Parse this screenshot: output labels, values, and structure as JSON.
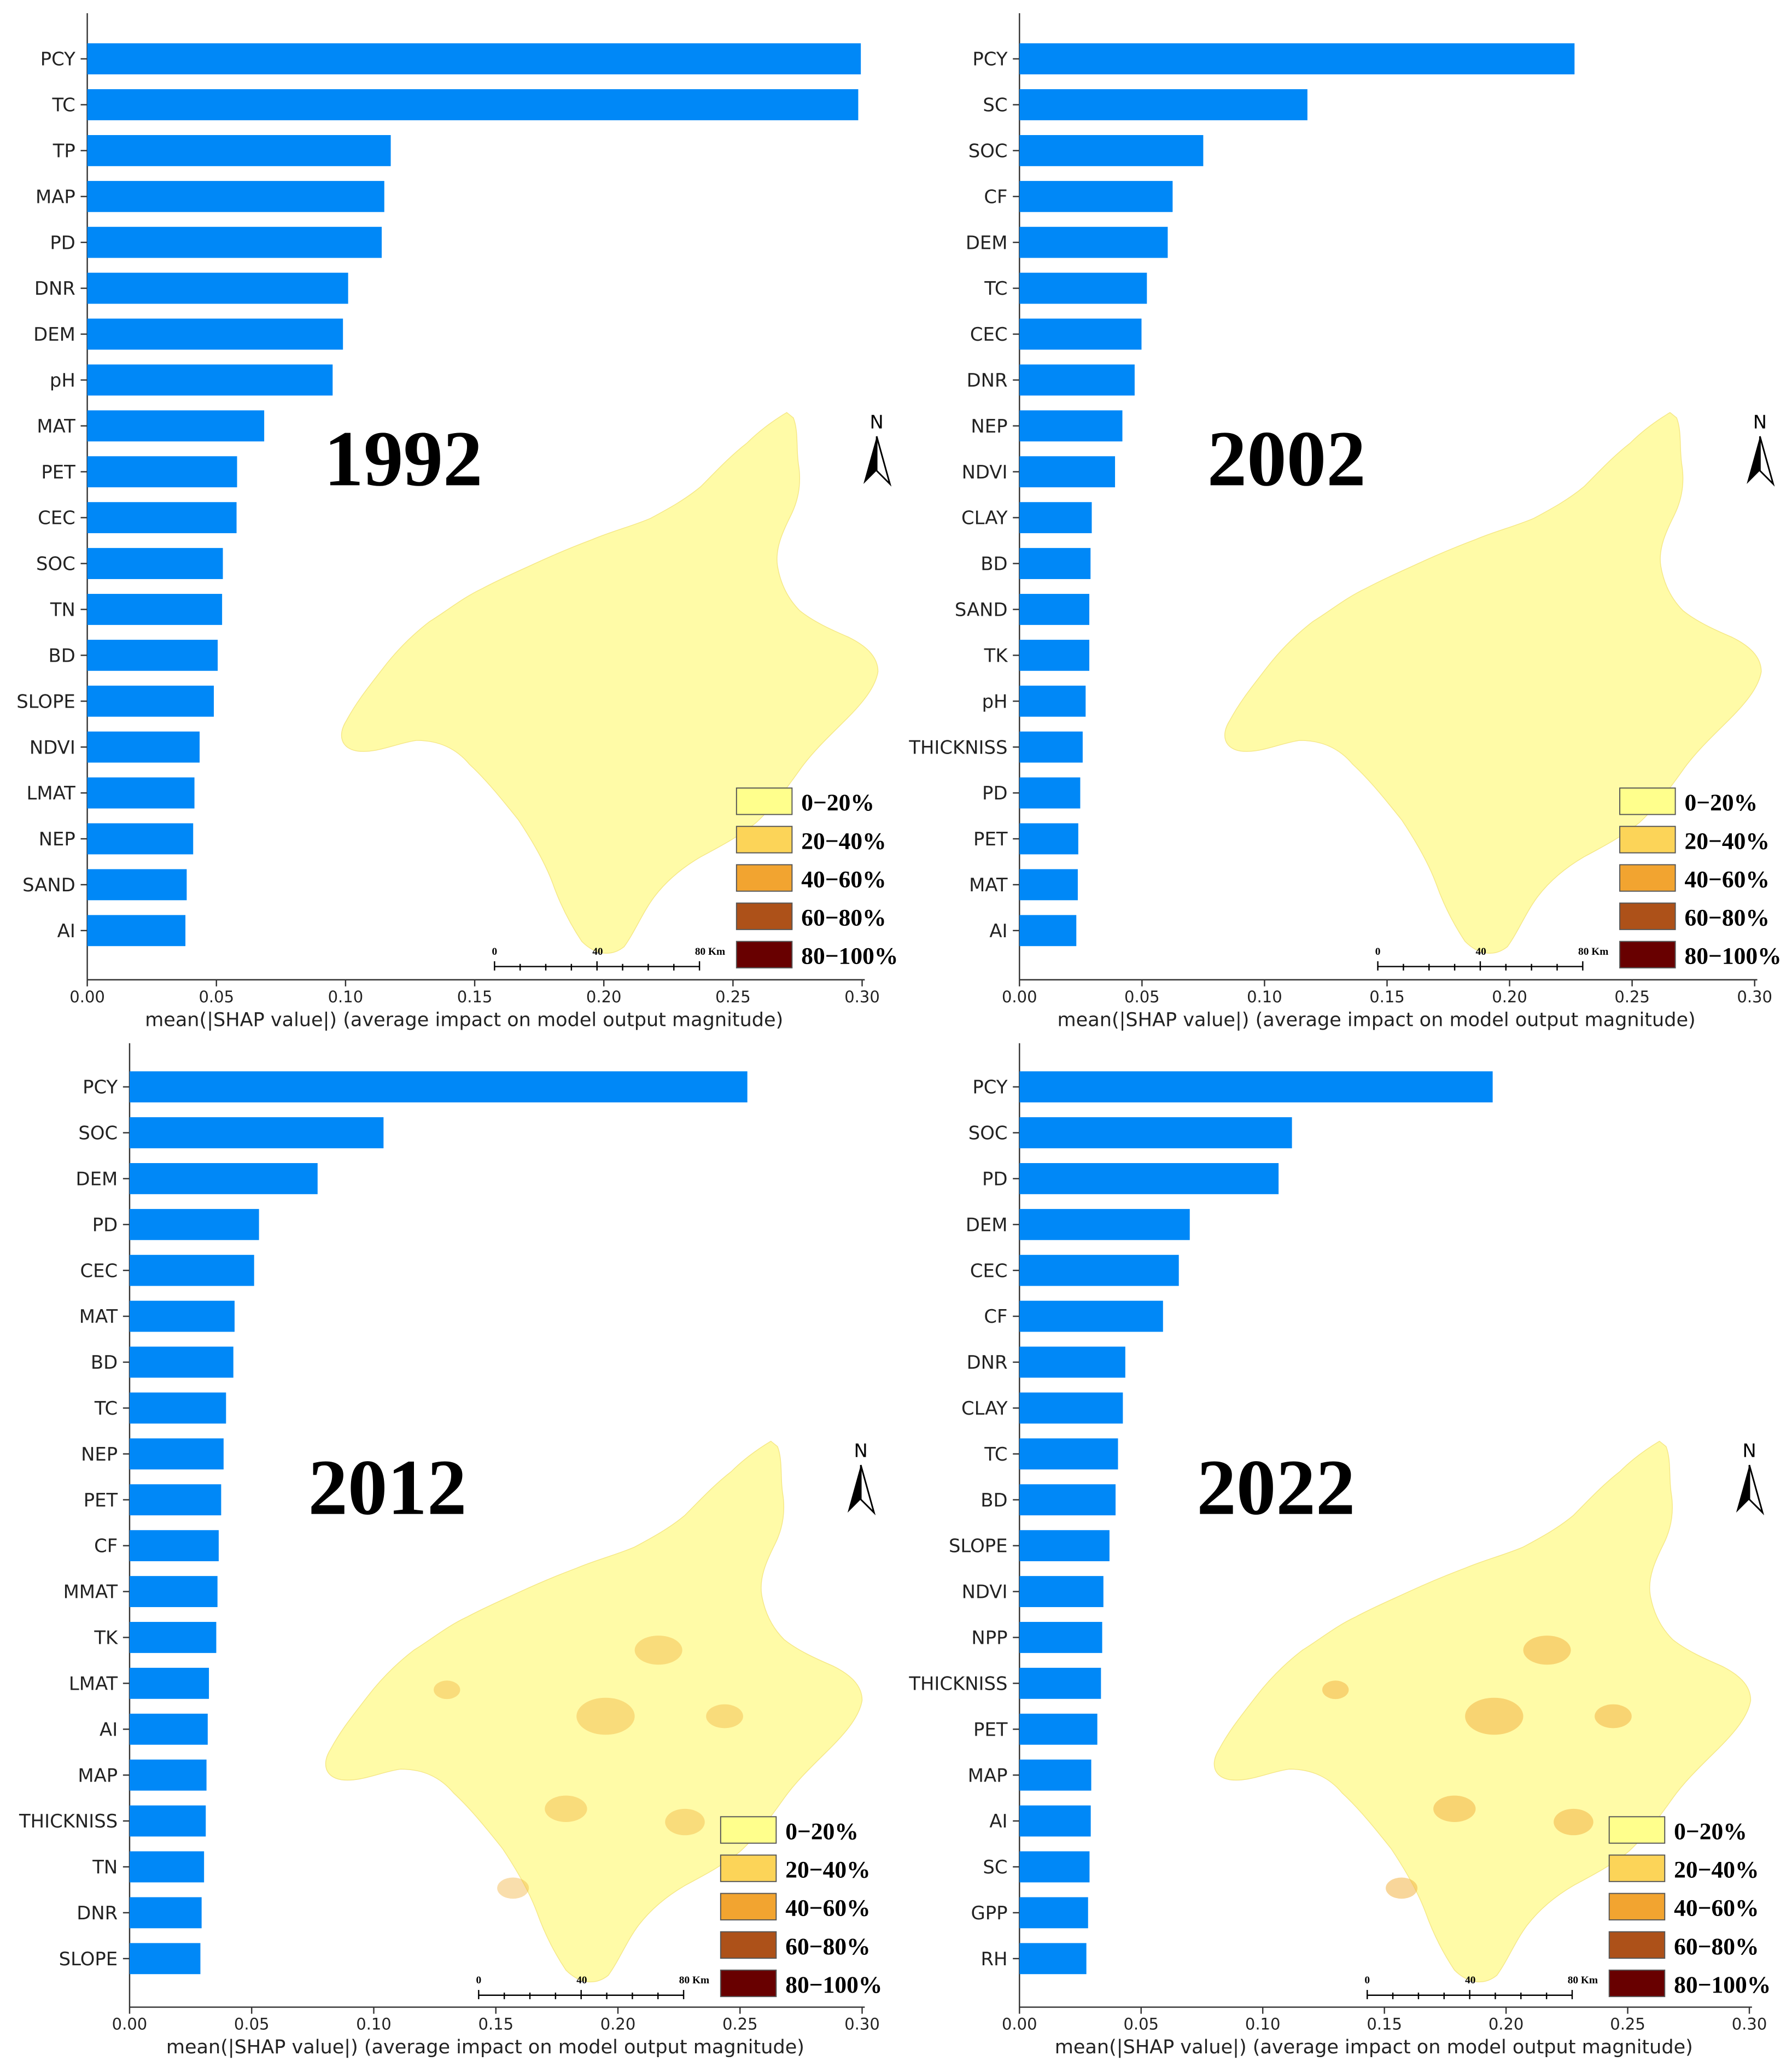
{
  "chart_data": [
    {
      "type": "bar",
      "orientation": "horizontal",
      "map_label": "1992",
      "categories": [
        "PCY",
        "TC",
        "TP",
        "MAP",
        "PD",
        "DNR",
        "DEM",
        "pH",
        "MAT",
        "PET",
        "CEC",
        "SOC",
        "TN",
        "BD",
        "SLOPE",
        "NDVI",
        "LMAT",
        "NEP",
        "SAND",
        "AI"
      ],
      "values": [
        0.2995,
        0.2985,
        0.1175,
        0.115,
        0.114,
        0.101,
        0.099,
        0.095,
        0.0685,
        0.058,
        0.0578,
        0.0525,
        0.0522,
        0.0505,
        0.049,
        0.0435,
        0.0415,
        0.041,
        0.0385,
        0.038
      ],
      "xlabel": "mean(|SHAP value|) (average impact on model output magnitude)",
      "xticks": [
        "0.00",
        "0.05",
        "0.10",
        "0.15",
        "0.20",
        "0.25",
        "0.30"
      ],
      "xlim": [
        0,
        0.3
      ]
    },
    {
      "type": "bar",
      "orientation": "horizontal",
      "map_label": "2002",
      "categories": [
        "PCY",
        "SC",
        "SOC",
        "CF",
        "DEM",
        "TC",
        "CEC",
        "DNR",
        "NEP",
        "NDVI",
        "CLAY",
        "BD",
        "SAND",
        "TK",
        "pH",
        "THICKNISS",
        "PD",
        "PET",
        "MAT",
        "AI"
      ],
      "values": [
        0.2265,
        0.1175,
        0.075,
        0.0625,
        0.0605,
        0.052,
        0.0498,
        0.047,
        0.042,
        0.039,
        0.0295,
        0.029,
        0.0285,
        0.0285,
        0.027,
        0.0258,
        0.0248,
        0.024,
        0.0238,
        0.0232
      ],
      "xlabel": "mean(|SHAP value|) (average impact on model output magnitude)",
      "xticks": [
        "0.00",
        "0.05",
        "0.10",
        "0.15",
        "0.20",
        "0.25",
        "0.30"
      ],
      "xlim": [
        0,
        0.3
      ]
    },
    {
      "type": "bar",
      "orientation": "horizontal",
      "map_label": "2012",
      "categories": [
        "PCY",
        "SOC",
        "DEM",
        "PD",
        "CEC",
        "MAT",
        "BD",
        "TC",
        "NEP",
        "PET",
        "CF",
        "MMAT",
        "TK",
        "LMAT",
        "AI",
        "MAP",
        "THICKNISS",
        "TN",
        "DNR",
        "SLOPE"
      ],
      "values": [
        0.253,
        0.104,
        0.077,
        0.053,
        0.051,
        0.043,
        0.0425,
        0.0395,
        0.0385,
        0.0375,
        0.0365,
        0.036,
        0.0355,
        0.0325,
        0.032,
        0.0315,
        0.0312,
        0.0305,
        0.0295,
        0.029
      ],
      "xlabel": "mean(|SHAP value|) (average impact on model output magnitude)",
      "xticks": [
        "0.00",
        "0.05",
        "0.10",
        "0.15",
        "0.20",
        "0.25",
        "0.30"
      ],
      "xlim": [
        0,
        0.3
      ]
    },
    {
      "type": "bar",
      "orientation": "horizontal",
      "map_label": "2022",
      "categories": [
        "PCY",
        "SOC",
        "PD",
        "DEM",
        "CEC",
        "CF",
        "DNR",
        "CLAY",
        "TC",
        "BD",
        "SLOPE",
        "NDVI",
        "NPP",
        "THICKNISS",
        "PET",
        "MAP",
        "AI",
        "SC",
        "GPP",
        "RH"
      ],
      "values": [
        0.1945,
        0.112,
        0.1065,
        0.07,
        0.0655,
        0.059,
        0.0435,
        0.0425,
        0.0405,
        0.0395,
        0.037,
        0.0345,
        0.034,
        0.0335,
        0.032,
        0.0295,
        0.0293,
        0.0288,
        0.0282,
        0.0275
      ],
      "xlabel": "mean(|SHAP value|) (average impact on model output magnitude)",
      "xticks": [
        "0.00",
        "0.05",
        "0.10",
        "0.15",
        "0.20",
        "0.25",
        "0.30"
      ],
      "xlim": [
        0,
        0.3
      ]
    }
  ],
  "legend": {
    "items": [
      "0−20%",
      "20−40%",
      "40−60%",
      "60−80%",
      "80−100%"
    ],
    "colors": [
      "#ffff8c",
      "#fcd458",
      "#f2a430",
      "#ad5119",
      "#680000"
    ]
  },
  "scale_bar": {
    "labels": [
      "0",
      "40",
      "80 Km"
    ]
  },
  "north_arrow": {
    "label": "N"
  },
  "colors": {
    "bar": "#0088f7",
    "axis": "#333333",
    "map_base": "#fffb9e"
  }
}
